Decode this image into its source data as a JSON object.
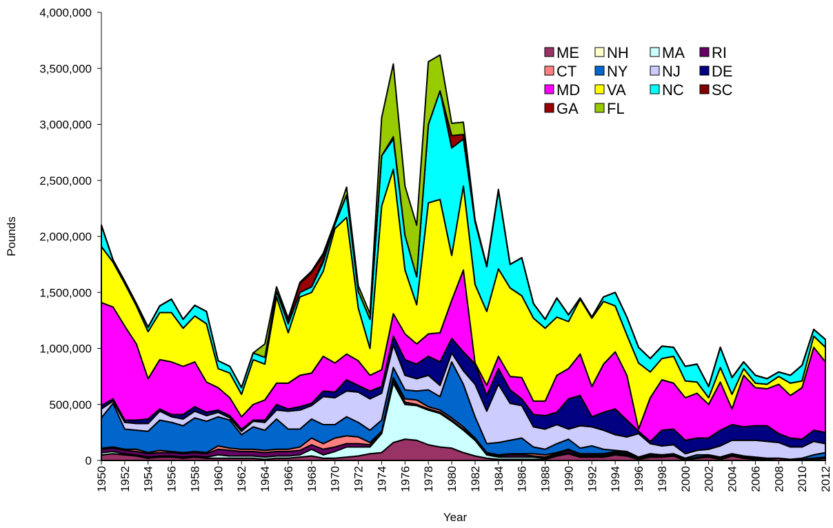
{
  "chart_data": {
    "type": "stacked_area",
    "x_label": "Year",
    "y_label": "Pounds",
    "x": [
      1950,
      1951,
      1952,
      1953,
      1954,
      1955,
      1956,
      1957,
      1958,
      1959,
      1960,
      1961,
      1962,
      1963,
      1964,
      1965,
      1966,
      1967,
      1968,
      1969,
      1970,
      1971,
      1972,
      1973,
      1974,
      1975,
      1976,
      1977,
      1978,
      1979,
      1980,
      1981,
      1982,
      1983,
      1984,
      1985,
      1986,
      1987,
      1988,
      1989,
      1990,
      1991,
      1992,
      1993,
      1994,
      1995,
      1996,
      1997,
      1998,
      1999,
      2000,
      2001,
      2002,
      2003,
      2004,
      2005,
      2006,
      2007,
      2008,
      2009,
      2010,
      2011,
      2012
    ],
    "xlim": [
      1950,
      2012
    ],
    "xticks": [
      1950,
      1952,
      1954,
      1956,
      1958,
      1960,
      1962,
      1964,
      1966,
      1968,
      1970,
      1972,
      1974,
      1976,
      1978,
      1980,
      1982,
      1984,
      1986,
      1988,
      1990,
      1992,
      1994,
      1996,
      1998,
      2000,
      2002,
      2004,
      2006,
      2008,
      2010,
      2012
    ],
    "ylim": [
      0,
      4000000
    ],
    "yticks": [
      0,
      {
        "value": 500000,
        "label": "500,000"
      },
      {
        "value": 1000000,
        "label": "1,000,000"
      },
      {
        "value": 1500000,
        "label": "1,500,000"
      },
      {
        "value": 2000000,
        "label": "2,000,000"
      },
      {
        "value": 2500000,
        "label": "2,500,000"
      },
      {
        "value": 3000000,
        "label": "3,000,000"
      },
      {
        "value": 3500000,
        "label": "3,500,000"
      },
      {
        "value": 4000000,
        "label": "4,000,000"
      }
    ],
    "legend": "upper right",
    "series": [
      {
        "name": "ME",
        "color": "#993366",
        "values": [
          50000,
          60000,
          50000,
          40000,
          20000,
          30000,
          30000,
          20000,
          30000,
          20000,
          20000,
          20000,
          20000,
          20000,
          10000,
          20000,
          20000,
          30000,
          40000,
          20000,
          20000,
          30000,
          40000,
          60000,
          70000,
          160000,
          190000,
          180000,
          140000,
          120000,
          110000,
          70000,
          40000,
          20000,
          10000,
          10000,
          10000,
          10000,
          10000,
          40000,
          60000,
          30000,
          30000,
          30000,
          50000,
          40000,
          10000,
          30000,
          30000,
          40000,
          0,
          20000,
          30000,
          10000,
          40000,
          20000,
          10000,
          10000,
          20000,
          0,
          10000,
          10000,
          20000
        ]
      },
      {
        "name": "NH",
        "color": "#FFFFCC",
        "values": [
          0,
          0,
          0,
          0,
          0,
          0,
          0,
          0,
          0,
          0,
          0,
          0,
          0,
          0,
          0,
          0,
          0,
          0,
          0,
          0,
          0,
          0,
          0,
          0,
          0,
          0,
          0,
          0,
          0,
          0,
          0,
          0,
          0,
          0,
          0,
          0,
          0,
          0,
          0,
          0,
          0,
          0,
          0,
          0,
          0,
          0,
          0,
          0,
          0,
          0,
          0,
          0,
          0,
          0,
          0,
          0,
          0,
          0,
          0,
          0,
          0,
          0,
          0
        ]
      },
      {
        "name": "MA",
        "color": "#CCFFFF",
        "values": [
          20000,
          20000,
          10000,
          10000,
          10000,
          10000,
          10000,
          10000,
          10000,
          10000,
          30000,
          20000,
          20000,
          20000,
          20000,
          20000,
          20000,
          20000,
          60000,
          30000,
          60000,
          90000,
          80000,
          60000,
          170000,
          530000,
          310000,
          310000,
          310000,
          300000,
          240000,
          200000,
          140000,
          30000,
          20000,
          20000,
          20000,
          20000,
          10000,
          10000,
          10000,
          10000,
          10000,
          10000,
          10000,
          10000,
          10000,
          10000,
          10000,
          10000,
          10000,
          10000,
          10000,
          10000,
          10000,
          10000,
          10000,
          0,
          0,
          10000,
          0,
          10000,
          10000
        ]
      },
      {
        "name": "RI",
        "color": "#660066",
        "values": [
          30000,
          30000,
          30000,
          30000,
          30000,
          30000,
          30000,
          30000,
          30000,
          30000,
          50000,
          50000,
          40000,
          40000,
          40000,
          40000,
          40000,
          40000,
          40000,
          50000,
          40000,
          30000,
          30000,
          20000,
          10000,
          30000,
          20000,
          10000,
          10000,
          10000,
          10000,
          10000,
          10000,
          10000,
          10000,
          20000,
          20000,
          10000,
          10000,
          10000,
          20000,
          10000,
          10000,
          10000,
          10000,
          10000,
          0,
          10000,
          0,
          0,
          0,
          0,
          0,
          0,
          0,
          0,
          0,
          0,
          0,
          0,
          0,
          0,
          0
        ]
      },
      {
        "name": "CT",
        "color": "#FF8080",
        "values": [
          10000,
          10000,
          10000,
          20000,
          10000,
          20000,
          10000,
          10000,
          10000,
          10000,
          30000,
          20000,
          20000,
          20000,
          20000,
          20000,
          20000,
          30000,
          60000,
          50000,
          80000,
          70000,
          60000,
          20000,
          10000,
          20000,
          30000,
          40000,
          20000,
          20000,
          20000,
          20000,
          10000,
          10000,
          10000,
          10000,
          10000,
          20000,
          20000,
          10000,
          10000,
          10000,
          10000,
          10000,
          10000,
          10000,
          0,
          0,
          0,
          0,
          0,
          0,
          0,
          0,
          0,
          0,
          0,
          0,
          0,
          0,
          0,
          0,
          0
        ]
      },
      {
        "name": "NY",
        "color": "#0066CC",
        "values": [
          270000,
          390000,
          180000,
          170000,
          190000,
          270000,
          260000,
          240000,
          300000,
          280000,
          260000,
          250000,
          130000,
          200000,
          180000,
          270000,
          180000,
          160000,
          170000,
          170000,
          120000,
          170000,
          130000,
          110000,
          100000,
          90000,
          80000,
          80000,
          150000,
          120000,
          500000,
          380000,
          190000,
          80000,
          110000,
          120000,
          140000,
          60000,
          50000,
          80000,
          90000,
          50000,
          70000,
          40000,
          10000,
          10000,
          10000,
          10000,
          10000,
          10000,
          10000,
          20000,
          10000,
          10000,
          10000,
          10000,
          10000,
          10000,
          0,
          0,
          10000,
          30000,
          40000
        ]
      },
      {
        "name": "NJ",
        "color": "#CCCCFF",
        "values": [
          80000,
          20000,
          60000,
          60000,
          70000,
          80000,
          50000,
          60000,
          60000,
          50000,
          40000,
          20000,
          30000,
          50000,
          70000,
          80000,
          160000,
          170000,
          120000,
          250000,
          240000,
          230000,
          270000,
          280000,
          240000,
          200000,
          130000,
          110000,
          130000,
          100000,
          80000,
          120000,
          290000,
          290000,
          520000,
          330000,
          290000,
          180000,
          180000,
          170000,
          90000,
          200000,
          170000,
          170000,
          140000,
          130000,
          210000,
          90000,
          80000,
          80000,
          40000,
          40000,
          50000,
          100000,
          120000,
          140000,
          150000,
          150000,
          140000,
          110000,
          100000,
          120000,
          80000
        ]
      },
      {
        "name": "DE",
        "color": "#000080",
        "values": [
          30000,
          20000,
          20000,
          30000,
          40000,
          20000,
          20000,
          40000,
          40000,
          30000,
          20000,
          20000,
          20000,
          10000,
          20000,
          50000,
          20000,
          30000,
          20000,
          50000,
          50000,
          100000,
          60000,
          70000,
          60000,
          80000,
          140000,
          130000,
          170000,
          210000,
          130000,
          170000,
          180000,
          140000,
          140000,
          120000,
          60000,
          110000,
          120000,
          110000,
          270000,
          270000,
          90000,
          160000,
          230000,
          150000,
          20000,
          20000,
          140000,
          140000,
          120000,
          110000,
          100000,
          140000,
          140000,
          120000,
          130000,
          140000,
          80000,
          80000,
          70000,
          100000,
          100000
        ]
      },
      {
        "name": "MD",
        "color": "#FF00FF",
        "values": [
          920000,
          820000,
          840000,
          680000,
          360000,
          440000,
          470000,
          430000,
          400000,
          270000,
          200000,
          160000,
          110000,
          140000,
          180000,
          190000,
          230000,
          280000,
          270000,
          310000,
          260000,
          230000,
          220000,
          140000,
          150000,
          200000,
          230000,
          180000,
          200000,
          260000,
          340000,
          730000,
          10000,
          90000,
          110000,
          120000,
          190000,
          120000,
          130000,
          330000,
          270000,
          370000,
          270000,
          430000,
          510000,
          400000,
          20000,
          390000,
          450000,
          410000,
          380000,
          400000,
          300000,
          430000,
          140000,
          460000,
          340000,
          330000,
          440000,
          380000,
          460000,
          740000,
          630000
        ]
      },
      {
        "name": "VA",
        "color": "#FFFF00",
        "values": [
          500000,
          400000,
          380000,
          340000,
          420000,
          420000,
          440000,
          340000,
          410000,
          520000,
          170000,
          220000,
          200000,
          400000,
          320000,
          770000,
          450000,
          700000,
          720000,
          760000,
          1200000,
          1220000,
          470000,
          240000,
          1460000,
          1290000,
          570000,
          350000,
          1170000,
          1190000,
          400000,
          750000,
          700000,
          660000,
          780000,
          790000,
          730000,
          740000,
          650000,
          520000,
          420000,
          490000,
          610000,
          560000,
          410000,
          360000,
          590000,
          230000,
          190000,
          240000,
          150000,
          100000,
          60000,
          130000,
          130000,
          60000,
          40000,
          40000,
          70000,
          110000,
          60000,
          100000,
          130000
        ]
      },
      {
        "name": "NC",
        "color": "#00FFFF",
        "values": [
          190000,
          20000,
          20000,
          20000,
          40000,
          60000,
          120000,
          80000,
          95000,
          110000,
          70000,
          60000,
          60000,
          60000,
          60000,
          50000,
          80000,
          40000,
          50000,
          80000,
          40000,
          200000,
          150000,
          260000,
          450000,
          270000,
          310000,
          250000,
          700000,
          970000,
          960000,
          420000,
          560000,
          400000,
          700000,
          210000,
          340000,
          130000,
          80000,
          170000,
          60000,
          10000,
          10000,
          40000,
          120000,
          160000,
          140000,
          120000,
          110000,
          80000,
          130000,
          160000,
          100000,
          180000,
          150000,
          60000,
          70000,
          50000,
          40000,
          70000,
          140000,
          60000,
          70000
        ]
      },
      {
        "name": "SC",
        "color": "#800000",
        "values": [
          0,
          0,
          0,
          0,
          0,
          0,
          0,
          0,
          0,
          0,
          0,
          0,
          0,
          0,
          0,
          0,
          0,
          0,
          0,
          20000,
          0,
          0,
          0,
          0,
          0,
          20000,
          0,
          0,
          0,
          0,
          0,
          0,
          0,
          0,
          0,
          0,
          0,
          0,
          0,
          0,
          0,
          0,
          0,
          0,
          0,
          0,
          0,
          0,
          0,
          0,
          0,
          0,
          0,
          0,
          0,
          0,
          0,
          0,
          0,
          0,
          0,
          0,
          0
        ]
      },
      {
        "name": "GA",
        "color": "#990000",
        "values": [
          0,
          0,
          0,
          0,
          0,
          0,
          0,
          0,
          0,
          0,
          0,
          0,
          0,
          0,
          0,
          0,
          30000,
          80000,
          130000,
          40000,
          0,
          0,
          0,
          0,
          0,
          0,
          0,
          0,
          0,
          0,
          110000,
          40000,
          0,
          0,
          0,
          0,
          0,
          0,
          0,
          0,
          0,
          0,
          0,
          0,
          0,
          0,
          0,
          0,
          0,
          0,
          0,
          0,
          0,
          0,
          0,
          0,
          0,
          0,
          0,
          0,
          0,
          0,
          0
        ]
      },
      {
        "name": "FL",
        "color": "#99CC00",
        "values": [
          0,
          0,
          0,
          0,
          0,
          0,
          0,
          0,
          0,
          0,
          0,
          0,
          0,
          0,
          120000,
          40000,
          20000,
          10000,
          10000,
          20000,
          20000,
          70000,
          50000,
          50000,
          340000,
          650000,
          440000,
          460000,
          560000,
          320000,
          110000,
          110000,
          20000,
          10000,
          10000,
          0,
          0,
          0,
          0,
          0,
          0,
          0,
          0,
          0,
          0,
          0,
          0,
          0,
          0,
          0,
          0,
          0,
          0,
          0,
          0,
          0,
          0,
          0,
          0,
          0,
          0,
          0,
          0
        ]
      }
    ]
  }
}
